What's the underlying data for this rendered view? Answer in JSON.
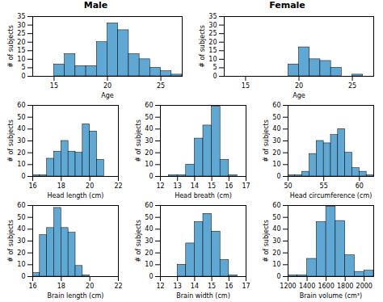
{
  "chart_data": [
    {
      "type": "histogram",
      "title": "Male",
      "xlabel": "Age",
      "ylabel": "# of subjects",
      "color": "#5fa8d3",
      "xlim": [
        13,
        27
      ],
      "ylim": [
        0,
        35
      ],
      "xticks": [
        15,
        20,
        25
      ],
      "yticks": [
        0,
        5,
        10,
        15,
        20,
        25,
        30,
        35
      ],
      "bins": [
        13,
        14,
        15,
        16,
        17,
        18,
        19,
        20,
        21,
        22,
        23,
        24,
        25,
        26,
        27
      ],
      "values": [
        0,
        0,
        7,
        13,
        6,
        6,
        20,
        31,
        27,
        13,
        10,
        5,
        3,
        1
      ]
    },
    {
      "type": "histogram",
      "title": "Female",
      "xlabel": "Age",
      "ylabel": "# of subjects",
      "color": "#5fa8d3",
      "xlim": [
        13,
        27
      ],
      "ylim": [
        0,
        35
      ],
      "xticks": [
        15,
        20,
        25
      ],
      "yticks": [
        0,
        5,
        10,
        15,
        20,
        25,
        30,
        35
      ],
      "bins": [
        13,
        14,
        15,
        16,
        17,
        18,
        19,
        20,
        21,
        22,
        23,
        24,
        25,
        26,
        27
      ],
      "values": [
        0,
        0,
        0,
        0,
        0,
        0,
        7,
        17,
        10,
        9,
        5,
        0,
        1,
        0
      ]
    },
    {
      "type": "histogram",
      "xlabel": "Head length (cm)",
      "ylabel": "# of subjects",
      "color": "#5fa8d3",
      "xlim": [
        16,
        22
      ],
      "ylim": [
        0,
        60
      ],
      "xticks": [
        16,
        18,
        20,
        22
      ],
      "yticks": [
        0,
        10,
        20,
        30,
        40,
        50,
        60
      ],
      "bins": [
        16.0,
        16.5,
        17.0,
        17.5,
        18.0,
        18.5,
        19.0,
        19.5,
        20.0,
        20.5,
        21.0,
        21.5,
        22.0
      ],
      "values": [
        1,
        1,
        15,
        21,
        30,
        21,
        20,
        44,
        38,
        14,
        0,
        0
      ]
    },
    {
      "type": "histogram",
      "xlabel": "Head breath (cm)",
      "ylabel": "# of subjects",
      "color": "#5fa8d3",
      "xlim": [
        12,
        17
      ],
      "ylim": [
        0,
        60
      ],
      "xticks": [
        12,
        13,
        14,
        15,
        16,
        17
      ],
      "yticks": [
        0,
        10,
        20,
        30,
        40,
        50,
        60
      ],
      "bins": [
        12.5,
        13.0,
        13.5,
        14.0,
        14.5,
        15.0,
        15.5,
        16.0,
        16.5,
        17.0
      ],
      "values": [
        1,
        1,
        10,
        32,
        43,
        59,
        14,
        1,
        0
      ]
    },
    {
      "type": "histogram",
      "xlabel": "Head circumference (cm)",
      "ylabel": "# of subjects",
      "color": "#5fa8d3",
      "xlim": [
        50,
        62
      ],
      "ylim": [
        0,
        60
      ],
      "xticks": [
        50,
        55,
        60
      ],
      "yticks": [
        0,
        10,
        20,
        30,
        40,
        50,
        60
      ],
      "bins": [
        50,
        51,
        52,
        53,
        54,
        55,
        56,
        57,
        58,
        59,
        60,
        61,
        62
      ],
      "values": [
        1,
        1,
        4,
        19,
        30,
        28,
        35,
        40,
        20,
        7,
        4,
        1
      ]
    },
    {
      "type": "histogram",
      "xlabel": "Brain length (cm)",
      "ylabel": "# of subjects",
      "color": "#5fa8d3",
      "xlim": [
        16,
        22
      ],
      "ylim": [
        0,
        60
      ],
      "xticks": [
        16,
        18,
        20,
        22
      ],
      "yticks": [
        0,
        10,
        20,
        30,
        40,
        50,
        60
      ],
      "bins": [
        16.0,
        16.5,
        17.0,
        17.5,
        18.0,
        18.5,
        19.0,
        19.5,
        20.0,
        20.5,
        21.0,
        21.5,
        22.0
      ],
      "values": [
        3,
        35,
        41,
        58,
        41,
        37,
        9,
        1,
        0,
        0,
        0,
        0
      ]
    },
    {
      "type": "histogram",
      "xlabel": "Brain width (cm)",
      "ylabel": "# of subjects",
      "color": "#5fa8d3",
      "xlim": [
        12,
        17
      ],
      "ylim": [
        0,
        60
      ],
      "xticks": [
        12,
        13,
        14,
        15,
        16,
        17
      ],
      "yticks": [
        0,
        10,
        20,
        30,
        40,
        50,
        60
      ],
      "bins": [
        12.5,
        13.0,
        13.5,
        14.0,
        14.5,
        15.0,
        15.5,
        16.0,
        16.5
      ],
      "values": [
        0,
        10,
        28,
        46,
        53,
        38,
        14,
        1
      ]
    },
    {
      "type": "histogram",
      "xlabel": "Brain volume (cm³)",
      "ylabel": "# of subjects",
      "color": "#5fa8d3",
      "xlim": [
        1200,
        2100
      ],
      "ylim": [
        0,
        60
      ],
      "xticks": [
        1200,
        1400,
        1600,
        1800,
        2000
      ],
      "yticks": [
        0,
        10,
        20,
        30,
        40,
        50,
        60
      ],
      "bins": [
        1200,
        1300,
        1400,
        1500,
        1600,
        1700,
        1800,
        1900,
        2000,
        2100
      ],
      "values": [
        1,
        1,
        15,
        46,
        59,
        47,
        18,
        4,
        5
      ]
    }
  ]
}
